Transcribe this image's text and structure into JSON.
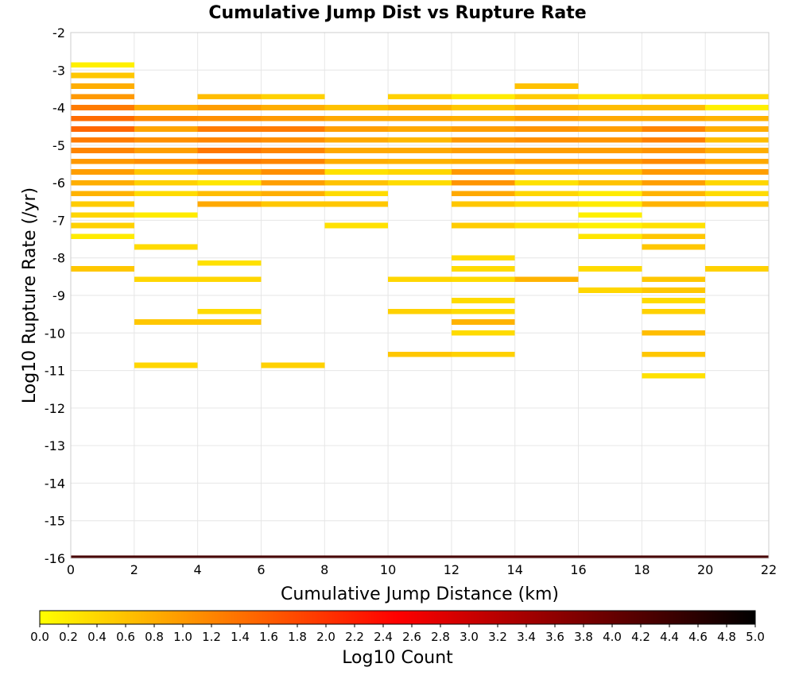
{
  "chart_data": {
    "type": "heatmap",
    "title": "Cumulative Jump Dist vs Rupture Rate",
    "xlabel": "Cumulative Jump Distance (km)",
    "ylabel": "Log10 Rupture Rate (/yr)",
    "xlim": [
      0,
      22
    ],
    "ylim": [
      -16,
      -2
    ],
    "x_ticks": [
      0,
      2,
      4,
      6,
      8,
      10,
      12,
      14,
      16,
      18,
      20,
      22
    ],
    "y_ticks": [
      -2,
      -3,
      -4,
      -5,
      -6,
      -7,
      -8,
      -9,
      -10,
      -11,
      -12,
      -13,
      -14,
      -15,
      -16
    ],
    "x_bin_width": 2,
    "y_bin_height": 0.143,
    "grid": true,
    "colorbar": {
      "label": "Log10 Count",
      "range": [
        0,
        5
      ],
      "ticks": [
        "0.0",
        "0.2",
        "0.4",
        "0.6",
        "0.8",
        "1.0",
        "1.2",
        "1.4",
        "1.6",
        "1.8",
        "2.0",
        "2.2",
        "2.4",
        "2.6",
        "2.8",
        "3.0",
        "3.2",
        "3.4",
        "3.6",
        "3.8",
        "4.0",
        "4.2",
        "4.4",
        "4.6",
        "4.8",
        "5.0"
      ],
      "colors": [
        "#ffff00",
        "#ff8000",
        "#ff0000",
        "#800000",
        "#000000"
      ]
    },
    "columns": [
      {
        "x": 0,
        "cells": [
          [
            -2.86,
            0.15
          ],
          [
            -3.14,
            0.55
          ],
          [
            -3.43,
            0.8
          ],
          [
            -3.71,
            1.0
          ],
          [
            -4.0,
            1.3
          ],
          [
            -4.29,
            1.45
          ],
          [
            -4.57,
            1.5
          ],
          [
            -4.86,
            1.3
          ],
          [
            -5.14,
            1.2
          ],
          [
            -5.43,
            1.0
          ],
          [
            -5.71,
            0.95
          ],
          [
            -6.0,
            0.8
          ],
          [
            -6.29,
            0.75
          ],
          [
            -6.57,
            0.5
          ],
          [
            -6.86,
            0.4
          ],
          [
            -7.14,
            0.45
          ],
          [
            -7.43,
            0.2
          ],
          [
            -8.29,
            0.55
          ]
        ]
      },
      {
        "x": 2,
        "cells": [
          [
            -4.0,
            0.8
          ],
          [
            -4.29,
            1.15
          ],
          [
            -4.57,
            0.9
          ],
          [
            -4.86,
            1.1
          ],
          [
            -5.14,
            0.95
          ],
          [
            -5.43,
            1.1
          ],
          [
            -5.71,
            0.55
          ],
          [
            -6.0,
            0.45
          ],
          [
            -6.29,
            0.35
          ],
          [
            -6.86,
            0.2
          ],
          [
            -7.71,
            0.35
          ],
          [
            -8.57,
            0.4
          ],
          [
            -9.71,
            0.55
          ],
          [
            -10.86,
            0.4
          ]
        ]
      },
      {
        "x": 4,
        "cells": [
          [
            -3.71,
            0.65
          ],
          [
            -4.0,
            0.95
          ],
          [
            -4.29,
            1.1
          ],
          [
            -4.57,
            1.3
          ],
          [
            -4.86,
            1.2
          ],
          [
            -5.14,
            1.35
          ],
          [
            -5.43,
            1.3
          ],
          [
            -5.71,
            0.8
          ],
          [
            -6.0,
            0.25
          ],
          [
            -6.29,
            0.65
          ],
          [
            -6.57,
            0.85
          ],
          [
            -8.14,
            0.3
          ],
          [
            -8.57,
            0.4
          ],
          [
            -9.43,
            0.35
          ],
          [
            -9.71,
            0.55
          ]
        ]
      },
      {
        "x": 6,
        "cells": [
          [
            -3.71,
            0.45
          ],
          [
            -4.0,
            0.8
          ],
          [
            -4.29,
            1.0
          ],
          [
            -4.57,
            1.3
          ],
          [
            -4.86,
            1.1
          ],
          [
            -5.14,
            1.2
          ],
          [
            -5.43,
            1.2
          ],
          [
            -5.71,
            1.1
          ],
          [
            -6.0,
            0.95
          ],
          [
            -6.29,
            0.8
          ],
          [
            -6.57,
            0.55
          ],
          [
            -10.86,
            0.45
          ]
        ]
      },
      {
        "x": 8,
        "cells": [
          [
            -4.0,
            0.6
          ],
          [
            -4.29,
            0.85
          ],
          [
            -4.57,
            0.95
          ],
          [
            -4.86,
            0.85
          ],
          [
            -5.14,
            0.85
          ],
          [
            -5.43,
            0.8
          ],
          [
            -5.71,
            0.3
          ],
          [
            -6.0,
            0.6
          ],
          [
            -6.29,
            0.35
          ],
          [
            -6.57,
            0.55
          ],
          [
            -7.14,
            0.3
          ]
        ]
      },
      {
        "x": 10,
        "cells": [
          [
            -3.71,
            0.45
          ],
          [
            -4.0,
            0.75
          ],
          [
            -4.29,
            0.85
          ],
          [
            -4.57,
            0.85
          ],
          [
            -4.86,
            0.7
          ],
          [
            -5.14,
            0.85
          ],
          [
            -5.43,
            0.75
          ],
          [
            -5.71,
            0.4
          ],
          [
            -6.0,
            0.35
          ],
          [
            -8.57,
            0.4
          ],
          [
            -9.43,
            0.45
          ],
          [
            -10.57,
            0.55
          ]
        ]
      },
      {
        "x": 12,
        "cells": [
          [
            -3.71,
            0.2
          ],
          [
            -4.0,
            0.55
          ],
          [
            -4.29,
            0.8
          ],
          [
            -4.57,
            0.95
          ],
          [
            -4.86,
            1.0
          ],
          [
            -5.14,
            0.95
          ],
          [
            -5.43,
            0.8
          ],
          [
            -5.71,
            1.0
          ],
          [
            -6.0,
            1.05
          ],
          [
            -6.29,
            0.85
          ],
          [
            -6.57,
            0.55
          ],
          [
            -7.14,
            0.5
          ],
          [
            -8.0,
            0.35
          ],
          [
            -8.29,
            0.35
          ],
          [
            -8.57,
            0.35
          ],
          [
            -9.14,
            0.35
          ],
          [
            -9.43,
            0.35
          ],
          [
            -9.71,
            0.75
          ],
          [
            -10.0,
            0.35
          ],
          [
            -10.57,
            0.45
          ]
        ]
      },
      {
        "x": 14,
        "cells": [
          [
            -3.43,
            0.6
          ],
          [
            -3.71,
            0.5
          ],
          [
            -4.0,
            0.75
          ],
          [
            -4.29,
            0.95
          ],
          [
            -4.57,
            1.05
          ],
          [
            -4.86,
            1.1
          ],
          [
            -5.14,
            0.95
          ],
          [
            -5.43,
            0.95
          ],
          [
            -5.71,
            0.65
          ],
          [
            -6.0,
            0.3
          ],
          [
            -6.29,
            0.4
          ],
          [
            -6.57,
            0.35
          ],
          [
            -7.14,
            0.3
          ],
          [
            -8.57,
            0.75
          ]
        ]
      },
      {
        "x": 16,
        "cells": [
          [
            -3.71,
            0.25
          ],
          [
            -4.0,
            0.65
          ],
          [
            -4.29,
            0.85
          ],
          [
            -4.57,
            0.95
          ],
          [
            -4.86,
            1.05
          ],
          [
            -5.14,
            0.95
          ],
          [
            -5.43,
            1.0
          ],
          [
            -5.71,
            0.6
          ],
          [
            -6.0,
            0.6
          ],
          [
            -6.29,
            0.2
          ],
          [
            -6.57,
            0.2
          ],
          [
            -6.86,
            0.15
          ],
          [
            -7.14,
            0.15
          ],
          [
            -7.43,
            0.25
          ],
          [
            -8.29,
            0.35
          ],
          [
            -8.86,
            0.4
          ]
        ]
      },
      {
        "x": 18,
        "cells": [
          [
            -3.71,
            0.35
          ],
          [
            -4.0,
            0.65
          ],
          [
            -4.29,
            0.85
          ],
          [
            -4.57,
            1.2
          ],
          [
            -4.86,
            1.25
          ],
          [
            -5.14,
            1.05
          ],
          [
            -5.43,
            1.15
          ],
          [
            -5.71,
            1.0
          ],
          [
            -6.0,
            0.95
          ],
          [
            -6.29,
            0.75
          ],
          [
            -6.57,
            0.75
          ],
          [
            -7.14,
            0.3
          ],
          [
            -7.43,
            0.55
          ],
          [
            -7.71,
            0.55
          ],
          [
            -8.57,
            0.55
          ],
          [
            -8.86,
            0.55
          ],
          [
            -9.14,
            0.35
          ],
          [
            -9.43,
            0.45
          ],
          [
            -10.0,
            0.65
          ],
          [
            -10.57,
            0.55
          ],
          [
            -11.14,
            0.3
          ]
        ]
      },
      {
        "x": 20,
        "cells": [
          [
            -3.71,
            0.35
          ],
          [
            -4.0,
            0.15
          ],
          [
            -4.29,
            0.75
          ],
          [
            -4.57,
            0.8
          ],
          [
            -4.86,
            0.65
          ],
          [
            -5.14,
            0.8
          ],
          [
            -5.43,
            0.85
          ],
          [
            -5.71,
            0.95
          ],
          [
            -6.0,
            0.4
          ],
          [
            -6.29,
            0.35
          ],
          [
            -6.57,
            0.55
          ],
          [
            -8.29,
            0.45
          ]
        ]
      }
    ],
    "bottom_band": {
      "y": -16,
      "value": 4.3,
      "x_range": [
        0,
        22
      ]
    }
  }
}
